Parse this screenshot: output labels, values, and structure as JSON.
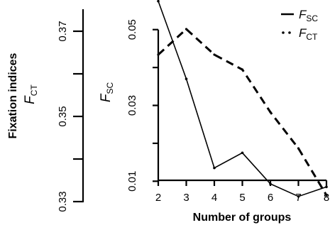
{
  "chart_data": {
    "type": "line",
    "x": [
      2,
      3,
      4,
      5,
      6,
      7,
      8
    ],
    "xlabel": "Number of groups",
    "xticks": [
      "2",
      "3",
      "4",
      "5",
      "6",
      "7",
      "8"
    ],
    "xlim": [
      2,
      8
    ],
    "left_axis": {
      "title_line1": "Fixation indices",
      "title_main": "F",
      "title_sub": "CT",
      "ylim": [
        0.33,
        0.375
      ],
      "ticks": [
        "0.33",
        "0.35",
        "0.37"
      ]
    },
    "right_axis": {
      "title_main": "F",
      "title_sub": "SC",
      "ylim": [
        0.005,
        0.055
      ],
      "ticks": [
        "0.01",
        "0.03",
        "0.05"
      ]
    },
    "series": [
      {
        "name": "F_SC",
        "legend_main": "F",
        "legend_sub": "SC",
        "style": "solid",
        "axis": "right",
        "values": [
          0.0575,
          0.037,
          0.0135,
          0.0175,
          0.0093,
          0.006,
          0.0085
        ]
      },
      {
        "name": "F_CT",
        "legend_main": "F",
        "legend_sub": "CT",
        "style": "dashed",
        "axis": "left",
        "values": [
          0.3645,
          0.3705,
          0.3645,
          0.361,
          0.351,
          0.3425,
          0.3315
        ]
      }
    ],
    "legend_position": "top-right",
    "grid": false
  }
}
